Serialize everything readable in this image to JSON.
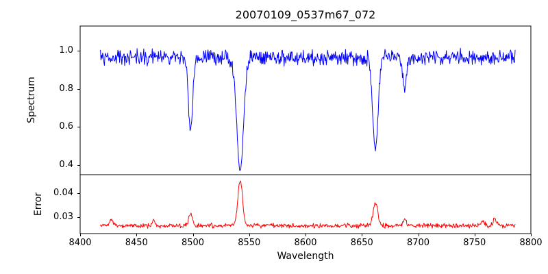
{
  "chart_data": {
    "type": "line",
    "title": "20070109_0537m67_072",
    "xlabel": "Wavelength",
    "x_range": [
      8400,
      8800
    ],
    "x_data_range": [
      8418,
      8786
    ],
    "sample_step": 0.5,
    "grid": false,
    "legend": "none",
    "xticks": [
      {
        "value": 8400,
        "label": "8400"
      },
      {
        "value": 8450,
        "label": "8450"
      },
      {
        "value": 8500,
        "label": "8500"
      },
      {
        "value": 8550,
        "label": "8550"
      },
      {
        "value": 8600,
        "label": "8600"
      },
      {
        "value": 8650,
        "label": "8650"
      },
      {
        "value": 8700,
        "label": "8700"
      },
      {
        "value": 8750,
        "label": "8750"
      },
      {
        "value": 8800,
        "label": "8800"
      }
    ],
    "panels": [
      {
        "name": "spectrum",
        "ylabel": "Spectrum",
        "ylim": [
          0.35,
          1.13
        ],
        "yticks": [
          {
            "value": 1.0,
            "label": "1.0"
          },
          {
            "value": 0.8,
            "label": "0.8"
          },
          {
            "value": 0.6,
            "label": "0.6"
          },
          {
            "value": 0.4,
            "label": "0.4"
          }
        ],
        "line_color": "#0000ff",
        "continuum": 0.965,
        "noise_amplitude": 0.05,
        "absorption_lines": [
          {
            "center": 8498,
            "minimum": 0.58,
            "depth": 0.385,
            "sigma": 1.9
          },
          {
            "center": 8542,
            "minimum": 0.37,
            "depth": 0.595,
            "sigma": 3.0
          },
          {
            "center": 8662,
            "minimum": 0.48,
            "depth": 0.485,
            "sigma": 2.4
          },
          {
            "center": 8688,
            "minimum": 0.79,
            "depth": 0.175,
            "sigma": 1.6
          }
        ]
      },
      {
        "name": "error",
        "ylabel": "Error",
        "ylim": [
          0.0232,
          0.0478
        ],
        "yticks": [
          {
            "value": 0.04,
            "label": "0.04"
          },
          {
            "value": 0.03,
            "label": "0.03"
          }
        ],
        "line_color": "#ff0000",
        "baseline": 0.0265,
        "noise_amplitude": 0.0012,
        "peaks": [
          {
            "center": 8428,
            "height": 0.0025,
            "sigma": 1.6
          },
          {
            "center": 8465,
            "height": 0.0022,
            "sigma": 1.4
          },
          {
            "center": 8498,
            "height": 0.0048,
            "sigma": 1.8
          },
          {
            "center": 8542,
            "height": 0.019,
            "sigma": 2.0
          },
          {
            "center": 8662,
            "height": 0.0095,
            "sigma": 2.0
          },
          {
            "center": 8688,
            "height": 0.0028,
            "sigma": 1.5
          },
          {
            "center": 8757,
            "height": 0.0022,
            "sigma": 1.5
          },
          {
            "center": 8768,
            "height": 0.0028,
            "sigma": 1.5
          }
        ]
      }
    ]
  }
}
